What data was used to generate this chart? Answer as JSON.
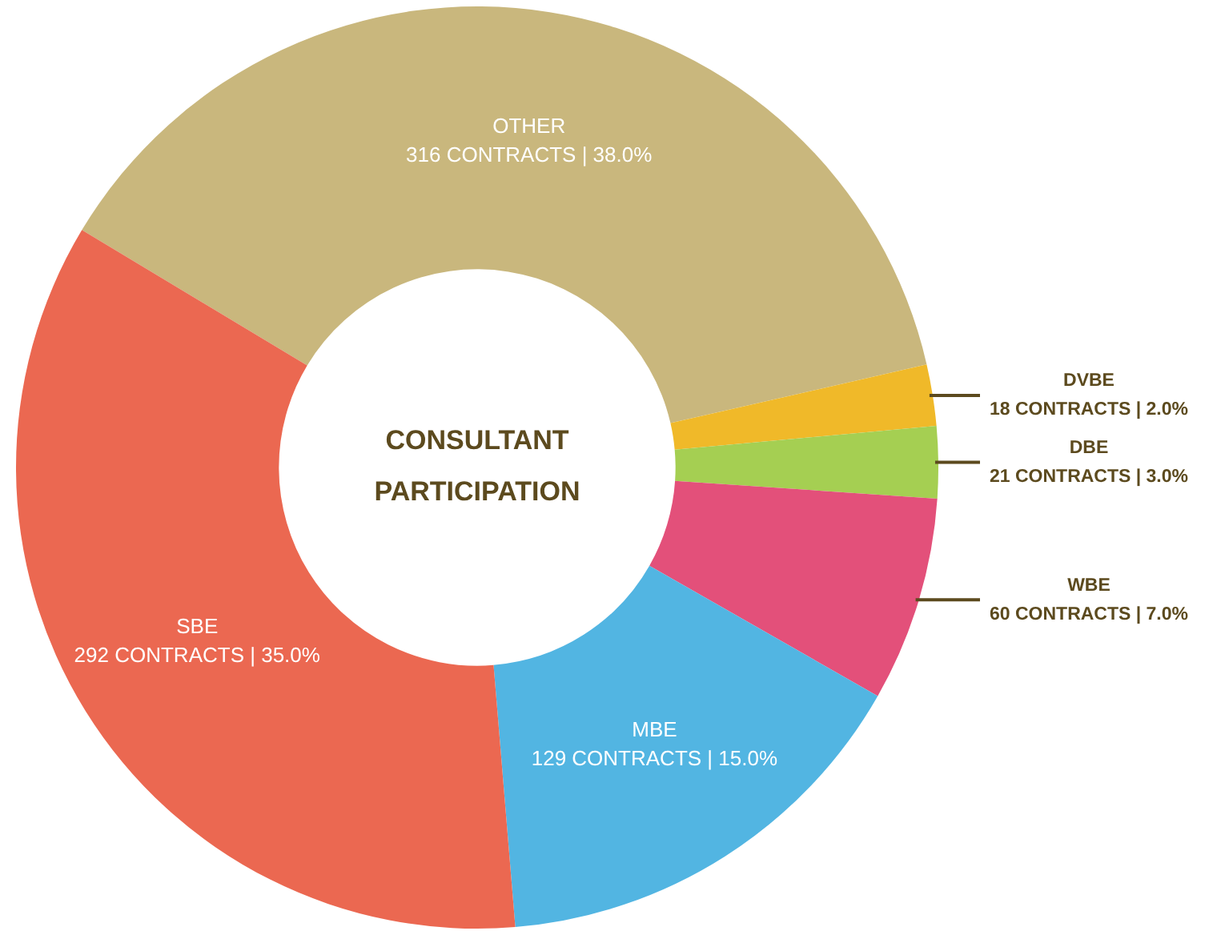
{
  "chart_data": {
    "type": "donut",
    "title": "CONSULTANT PARTICIPATION",
    "categories": [
      "OTHER",
      "DVBE",
      "DBE",
      "WBE",
      "MBE",
      "SBE"
    ],
    "values": [
      316,
      18,
      21,
      60,
      129,
      292
    ],
    "value_labels": [
      "316 CONTRACTS | 38.0%",
      "18 CONTRACTS | 2.0%",
      "21 CONTRACTS | 3.0%",
      "60 CONTRACTS | 7.0%",
      "129 CONTRACTS | 15.0%",
      "292 CONTRACTS | 35.0%"
    ],
    "colors": [
      "#c9b77d",
      "#f0b929",
      "#a5cf52",
      "#e3507a",
      "#52b5e2",
      "#eb6851"
    ]
  }
}
